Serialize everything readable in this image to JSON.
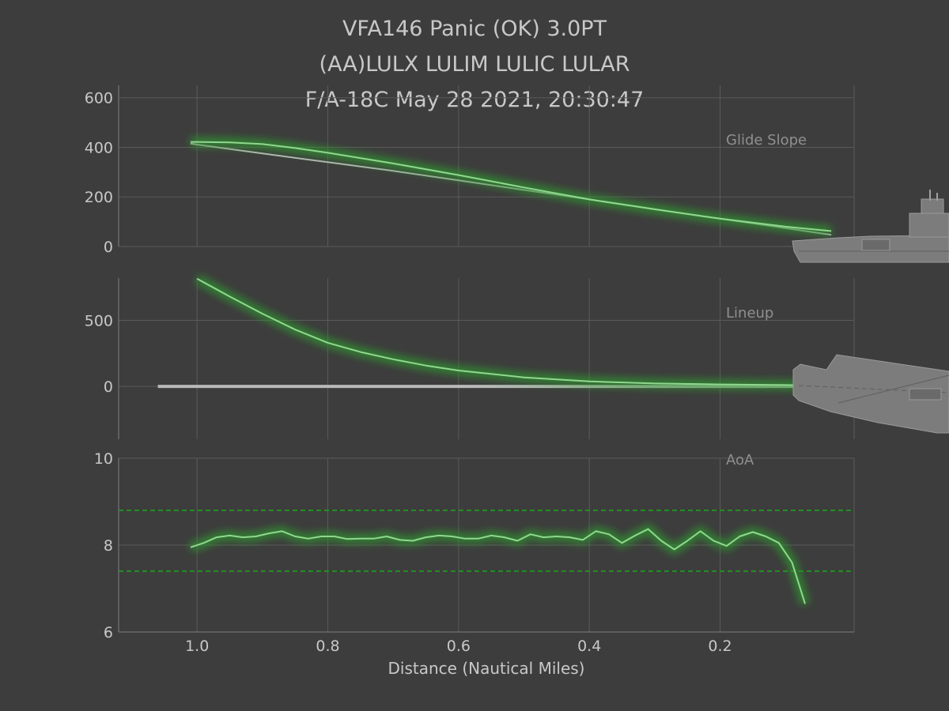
{
  "title_lines": [
    "VFA146 Panic (OK) 3.0PT",
    "(AA)LULX LULIM  LULIC LULAR",
    "F/A-18C May 28 2021, 20:30:47"
  ],
  "colors": {
    "background": "#3d3d3d",
    "grid": "#5a5a5a",
    "text": "#c8c8c8",
    "panel_label": "#8f8f8f",
    "reference": "#b9b9b9",
    "trace": "#8fd88f",
    "glow": "#2e9a2e",
    "limit": "#1f9a1f",
    "ship": "#808080"
  },
  "chart_data": [
    {
      "type": "line",
      "panel_label": "Glide Slope",
      "xlim": [
        1.12,
        -0.005
      ],
      "ylim": [
        0,
        650
      ],
      "yticks": [
        0,
        200,
        400,
        600
      ],
      "ytick_labels": [
        "0",
        "200",
        "400",
        "600"
      ],
      "series": [
        {
          "role": "reference",
          "x": [
            1.01,
            0.9,
            0.8,
            0.7,
            0.6,
            0.5,
            0.4,
            0.3,
            0.2,
            0.1,
            0.03
          ],
          "y": [
            415,
            375,
            340,
            305,
            267,
            228,
            190,
            150,
            112,
            74,
            47
          ]
        },
        {
          "role": "aircraft",
          "x": [
            1.01,
            0.95,
            0.9,
            0.85,
            0.8,
            0.7,
            0.6,
            0.5,
            0.4,
            0.3,
            0.2,
            0.1,
            0.03
          ],
          "y": [
            422,
            420,
            413,
            397,
            378,
            335,
            288,
            238,
            190,
            150,
            112,
            80,
            62
          ]
        }
      ]
    },
    {
      "type": "line",
      "panel_label": "Lineup",
      "xlim": [
        1.12,
        -0.005
      ],
      "ylim": [
        -400,
        820
      ],
      "yticks": [
        0,
        500
      ],
      "ytick_labels": [
        "0",
        "500"
      ],
      "series": [
        {
          "role": "reference",
          "x": [
            1.06,
            0.03
          ],
          "y": [
            0,
            0
          ]
        },
        {
          "role": "aircraft",
          "x": [
            1.0,
            0.95,
            0.9,
            0.85,
            0.8,
            0.75,
            0.7,
            0.65,
            0.6,
            0.5,
            0.4,
            0.3,
            0.2,
            0.1,
            0.03
          ],
          "y": [
            815,
            680,
            550,
            430,
            330,
            260,
            205,
            158,
            120,
            68,
            38,
            22,
            15,
            10,
            5
          ]
        }
      ]
    },
    {
      "type": "line",
      "panel_label": "AoA",
      "xlabel": "Distance (Nautical Miles)",
      "xlim": [
        1.12,
        -0.005
      ],
      "ylim": [
        6,
        10
      ],
      "yticks": [
        6,
        8,
        10
      ],
      "ytick_labels": [
        "6",
        "8",
        "10"
      ],
      "xticks": [
        1.0,
        0.8,
        0.6,
        0.4,
        0.2
      ],
      "xtick_labels": [
        "1.0",
        "0.8",
        "0.6",
        "0.4",
        "0.2"
      ],
      "limits": [
        8.8,
        7.4
      ],
      "series": [
        {
          "role": "aircraft",
          "x": [
            1.01,
            0.99,
            0.97,
            0.95,
            0.93,
            0.91,
            0.89,
            0.87,
            0.85,
            0.83,
            0.81,
            0.79,
            0.77,
            0.75,
            0.73,
            0.71,
            0.69,
            0.67,
            0.65,
            0.63,
            0.61,
            0.59,
            0.57,
            0.55,
            0.53,
            0.51,
            0.49,
            0.47,
            0.45,
            0.43,
            0.41,
            0.39,
            0.37,
            0.35,
            0.33,
            0.31,
            0.29,
            0.27,
            0.25,
            0.23,
            0.21,
            0.19,
            0.17,
            0.15,
            0.13,
            0.11,
            0.09,
            0.07
          ],
          "y": [
            7.95,
            8.05,
            8.18,
            8.22,
            8.18,
            8.2,
            8.27,
            8.32,
            8.2,
            8.15,
            8.2,
            8.2,
            8.14,
            8.15,
            8.15,
            8.2,
            8.12,
            8.1,
            8.18,
            8.22,
            8.2,
            8.15,
            8.15,
            8.22,
            8.18,
            8.1,
            8.25,
            8.18,
            8.2,
            8.18,
            8.12,
            8.32,
            8.25,
            8.05,
            8.22,
            8.37,
            8.1,
            7.9,
            8.1,
            8.32,
            8.1,
            7.98,
            8.2,
            8.3,
            8.2,
            8.05,
            7.6,
            6.65
          ]
        }
      ]
    }
  ]
}
